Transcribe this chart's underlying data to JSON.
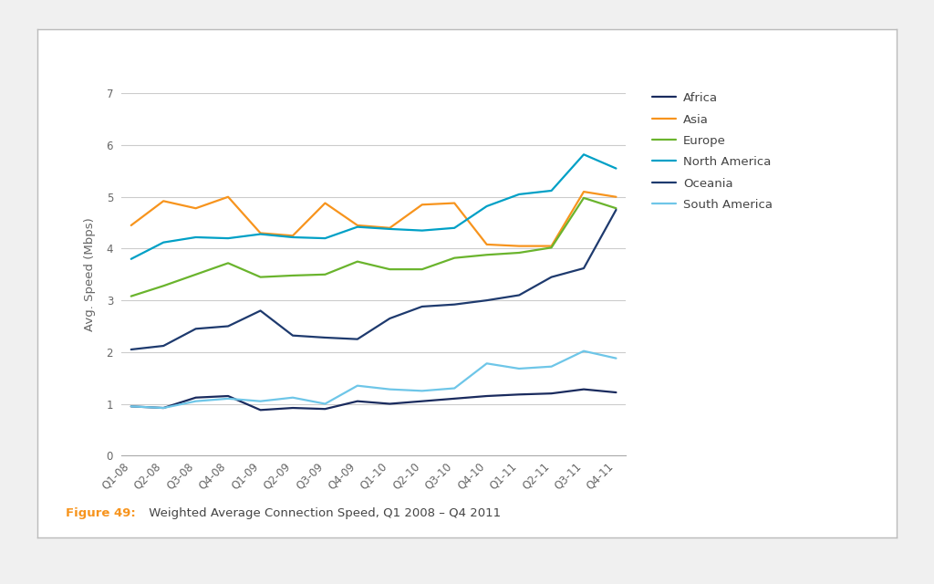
{
  "quarters": [
    "Q1-08",
    "Q2-08",
    "Q3-08",
    "Q4-08",
    "Q1-09",
    "Q2-09",
    "Q3-09",
    "Q4-09",
    "Q1-10",
    "Q2-10",
    "Q3-10",
    "Q4-10",
    "Q1-11",
    "Q2-11",
    "Q3-11",
    "Q4-11"
  ],
  "series": {
    "Africa": {
      "color": "#1a2b5e",
      "values": [
        0.95,
        0.92,
        1.12,
        1.15,
        0.88,
        0.92,
        0.9,
        1.05,
        1.0,
        1.05,
        1.1,
        1.15,
        1.18,
        1.2,
        1.28,
        1.22
      ]
    },
    "Asia": {
      "color": "#f7941d",
      "values": [
        4.45,
        4.92,
        4.78,
        5.0,
        4.3,
        4.25,
        4.88,
        4.45,
        4.4,
        4.85,
        4.88,
        4.08,
        4.05,
        4.05,
        5.1,
        5.0
      ]
    },
    "Europe": {
      "color": "#6ab42d",
      "values": [
        3.08,
        3.28,
        3.5,
        3.72,
        3.45,
        3.48,
        3.5,
        3.75,
        3.6,
        3.6,
        3.82,
        3.88,
        3.92,
        4.02,
        4.98,
        4.78
      ]
    },
    "North America": {
      "color": "#00a0c6",
      "values": [
        3.8,
        4.12,
        4.22,
        4.2,
        4.28,
        4.22,
        4.2,
        4.42,
        4.38,
        4.35,
        4.4,
        4.82,
        5.05,
        5.12,
        5.82,
        5.55
      ]
    },
    "Oceania": {
      "color": "#1e3a6e",
      "values": [
        2.05,
        2.12,
        2.45,
        2.5,
        2.8,
        2.32,
        2.28,
        2.25,
        2.65,
        2.88,
        2.92,
        3.0,
        3.1,
        3.45,
        3.62,
        4.75
      ]
    },
    "South America": {
      "color": "#6ec6e8",
      "values": [
        0.95,
        0.92,
        1.05,
        1.1,
        1.05,
        1.12,
        1.0,
        1.35,
        1.28,
        1.25,
        1.3,
        1.78,
        1.68,
        1.72,
        2.02,
        1.88
      ]
    }
  },
  "ylabel": "Avg. Speed (Mbps)",
  "ylim": [
    0,
    7
  ],
  "yticks": [
    0,
    1,
    2,
    3,
    4,
    5,
    6,
    7
  ],
  "figure_caption_bold": "Figure 49:",
  "figure_caption_rest": " Weighted Average Connection Speed, Q1 2008 – Q4 2011",
  "caption_color": "#f7941d",
  "caption_rest_color": "#444444",
  "background_color": "#f0f0f0",
  "inner_box_color": "#ffffff",
  "plot_bg_color": "#ffffff",
  "grid_color": "#cccccc",
  "line_width": 1.6,
  "legend_fontsize": 9.5,
  "axis_fontsize": 8.5,
  "ylabel_fontsize": 9.5,
  "caption_fontsize": 9.5
}
